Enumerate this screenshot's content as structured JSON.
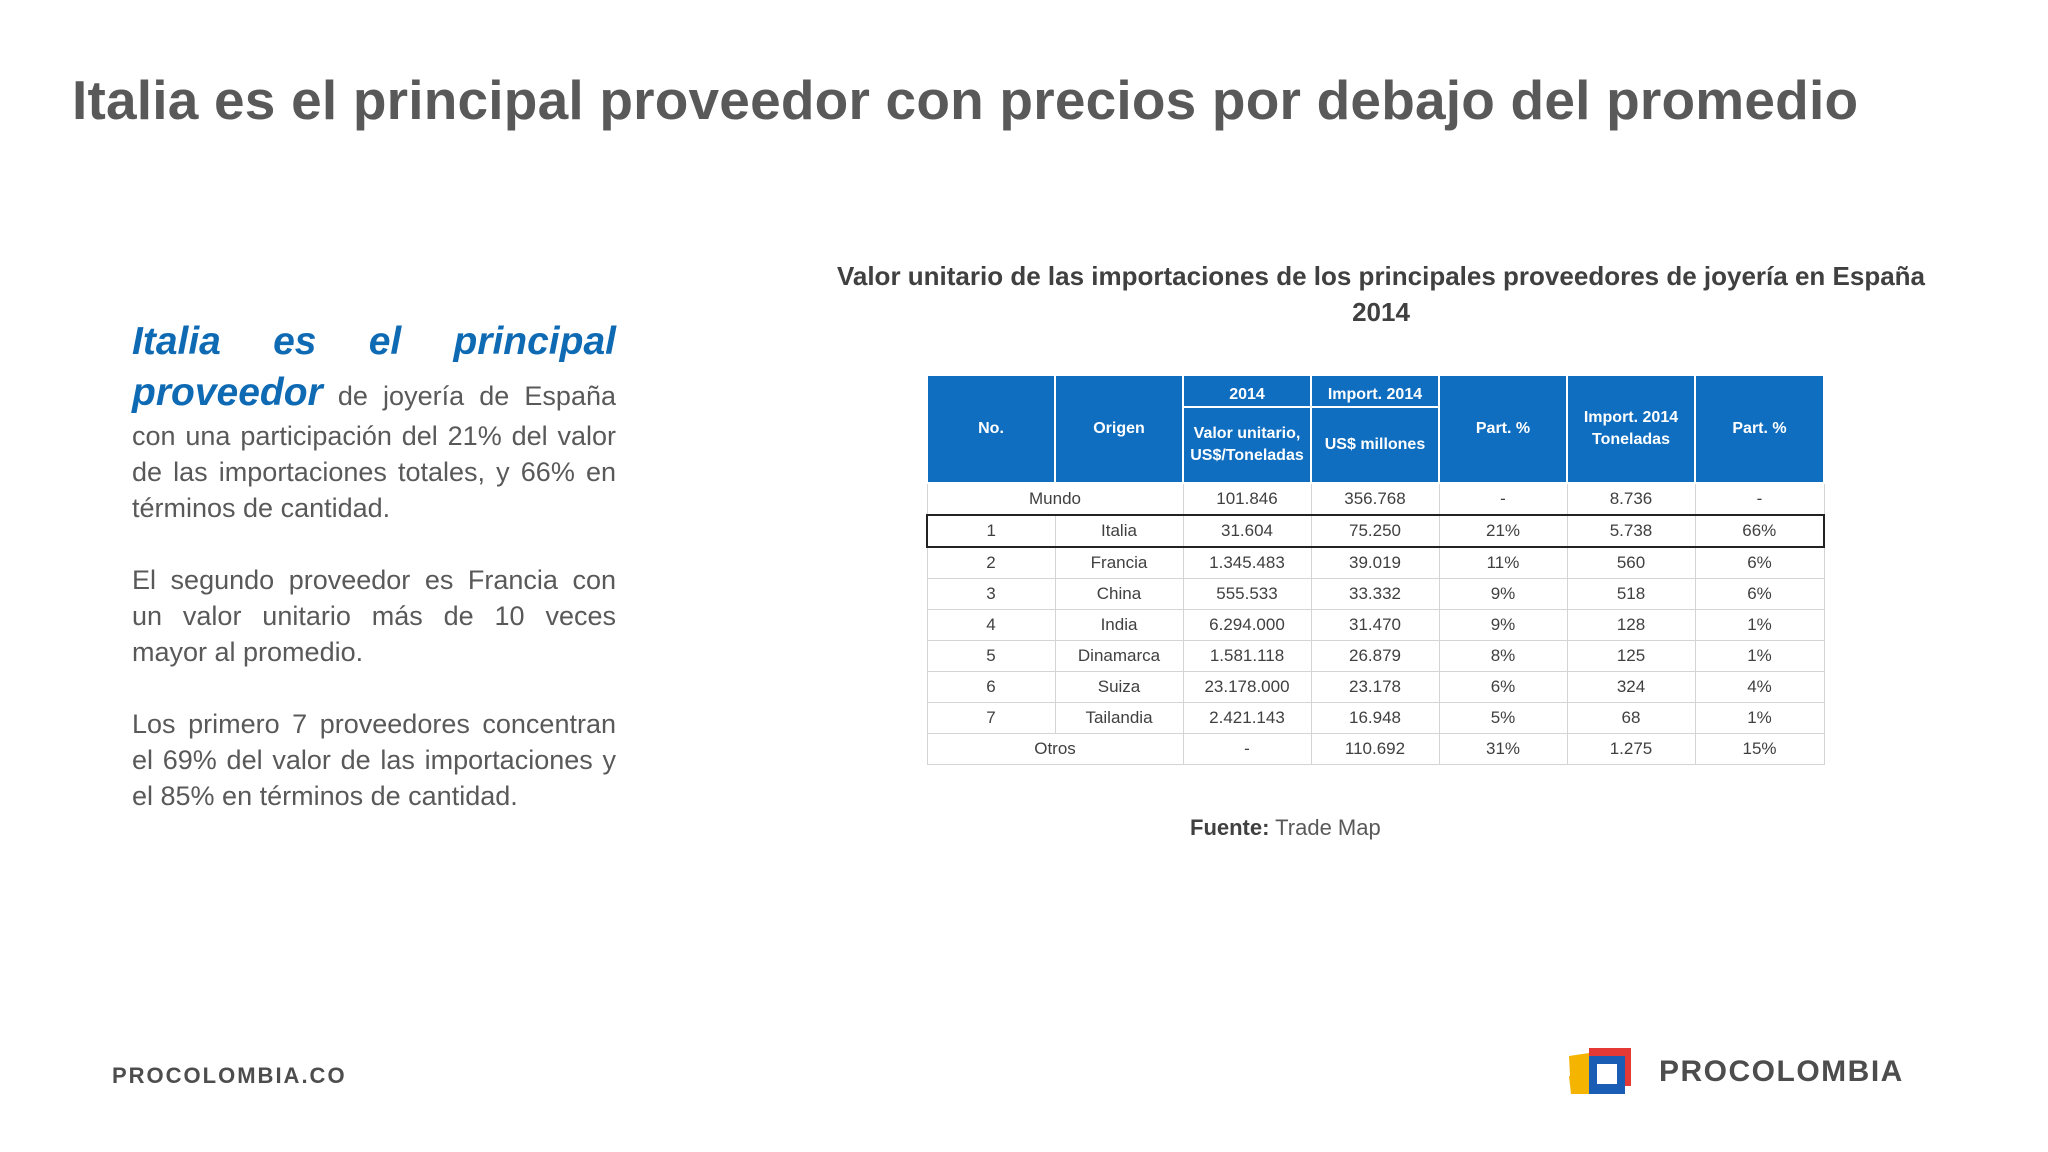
{
  "title": "Italia es el principal proveedor con precios por debajo del promedio",
  "left_text": {
    "lead_emphasis": "Italia es el principal proveedor",
    "lead_rest": " de joyería de España con una participación del 21% del valor de las importaciones totales, y 66% en términos de cantidad.",
    "paragraph2": "El segundo proveedor es Francia con un valor unitario más de 10 veces mayor al promedio.",
    "paragraph3": "Los primero 7 proveedores concentran el 69% del valor de las importaciones y el 85% en términos de cantidad."
  },
  "table_title": "Valor unitario de las importaciones de los principales proveedores de joyería en España 2014",
  "table": {
    "headers": {
      "no": "No.",
      "origen": "Origen",
      "year": "2014",
      "valor_unitario": "Valor unitario, US$/Toneladas",
      "import_2014": "Import. 2014",
      "usd_millones": "US$ millones",
      "part1": "Part. %",
      "import_toneladas": "Import. 2014 Toneladas",
      "part2": "Part. %"
    },
    "mundo": [
      "Mundo",
      "101.846",
      "356.768",
      "-",
      "8.736",
      "-"
    ],
    "rows": [
      [
        "1",
        "Italia",
        "31.604",
        "75.250",
        "21%",
        "5.738",
        "66%"
      ],
      [
        "2",
        "Francia",
        "1.345.483",
        "39.019",
        "11%",
        "560",
        "6%"
      ],
      [
        "3",
        "China",
        "555.533",
        "33.332",
        "9%",
        "518",
        "6%"
      ],
      [
        "4",
        "India",
        "6.294.000",
        "31.470",
        "9%",
        "128",
        "1%"
      ],
      [
        "5",
        "Dinamarca",
        "1.581.118",
        "26.879",
        "8%",
        "125",
        "1%"
      ],
      [
        "6",
        "Suiza",
        "23.178.000",
        "23.178",
        "6%",
        "324",
        "4%"
      ],
      [
        "7",
        "Tailandia",
        "2.421.143",
        "16.948",
        "5%",
        "68",
        "1%"
      ]
    ],
    "otros": [
      "Otros",
      "-",
      "110.692",
      "31%",
      "1.275",
      "15%"
    ]
  },
  "source": {
    "label": "Fuente:",
    "value": " Trade Map"
  },
  "footer": {
    "url": "PROCOLOMBIA.CO",
    "logo_text": "PROCOLOMBIA"
  },
  "colors": {
    "accent_blue": "#0f6ec0",
    "emphasis_blue": "#0f6ab4",
    "text_gray": "#595959"
  }
}
